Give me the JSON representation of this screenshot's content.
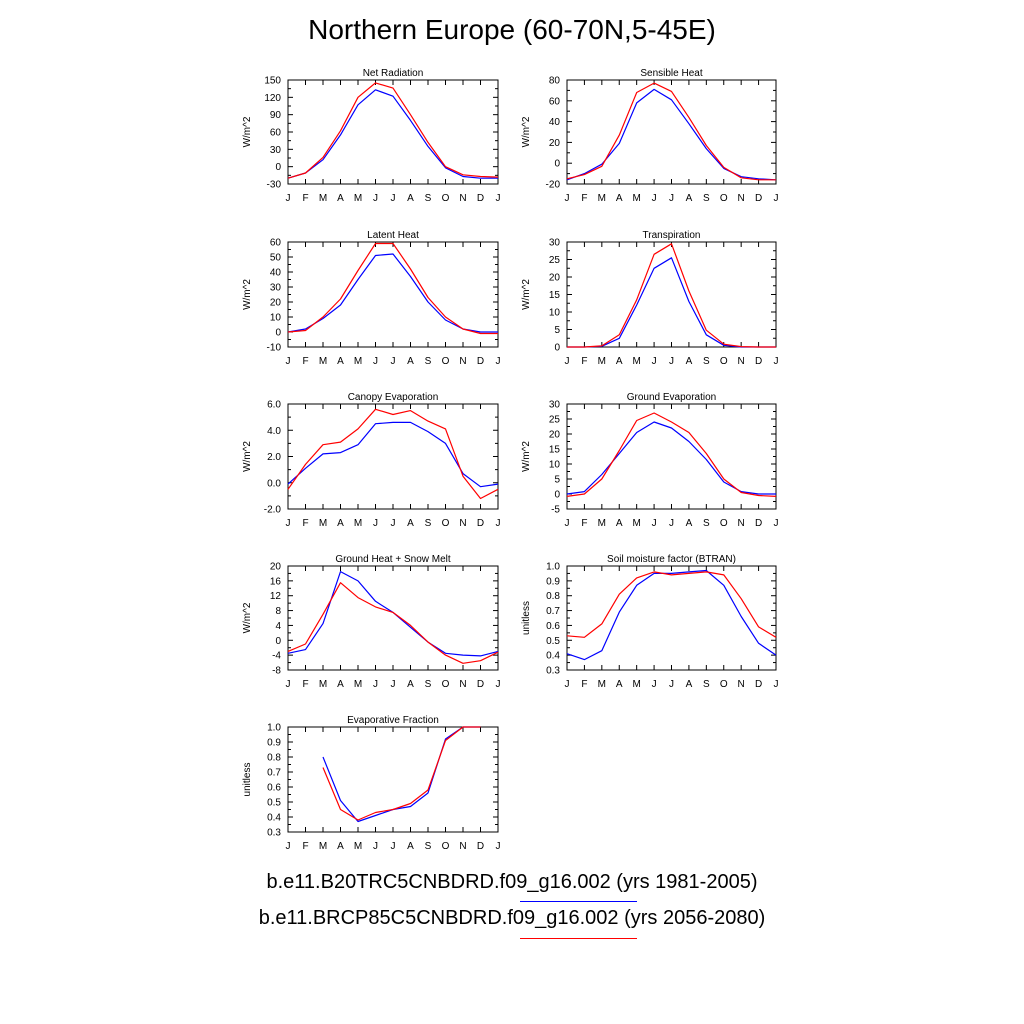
{
  "page": {
    "title": "Northern Europe (60-70N,5-45E)"
  },
  "legend": {
    "items": [
      {
        "label": "b.e11.B20TRC5CNBDRD.f09_g16.002 (yrs 1981-2005)",
        "color": "#0000ff"
      },
      {
        "label": "b.e11.BRCP85C5CNBDRD.f09_g16.002 (yrs 2056-2080)",
        "color": "#ff0000"
      }
    ]
  },
  "chart_data": [
    {
      "type": "line",
      "title": "Net Radiation",
      "ylabel": "W/m^2",
      "x": [
        "J",
        "F",
        "M",
        "A",
        "M",
        "J",
        "J",
        "A",
        "S",
        "O",
        "N",
        "D",
        "J"
      ],
      "ylim": [
        -30,
        150
      ],
      "yticks": [
        -30,
        0,
        30,
        60,
        90,
        120,
        150
      ],
      "ytick_labels": [
        "-30",
        "0",
        "30",
        "60",
        "90",
        "120",
        "150"
      ],
      "series": [
        {
          "color": "#0000ff",
          "values": [
            -20,
            -11,
            12,
            55,
            107,
            133,
            122,
            80,
            35,
            -2,
            -17,
            -20,
            -20
          ]
        },
        {
          "color": "#ff0000",
          "values": [
            -20,
            -11,
            16,
            62,
            120,
            145,
            136,
            90,
            42,
            0,
            -14,
            -17,
            -18
          ]
        }
      ]
    },
    {
      "type": "line",
      "title": "Sensible Heat",
      "ylabel": "W/m^2",
      "x": [
        "J",
        "F",
        "M",
        "A",
        "M",
        "J",
        "J",
        "A",
        "S",
        "O",
        "N",
        "D",
        "J"
      ],
      "ylim": [
        -20,
        80
      ],
      "yticks": [
        -20,
        0,
        20,
        40,
        60,
        80
      ],
      "ytick_labels": [
        "-20",
        "0",
        "20",
        "40",
        "60",
        "80"
      ],
      "series": [
        {
          "color": "#0000ff",
          "values": [
            -16,
            -10,
            -1,
            19,
            58,
            71,
            61,
            38,
            14,
            -5,
            -13,
            -15,
            -16
          ]
        },
        {
          "color": "#ff0000",
          "values": [
            -15,
            -11,
            -3,
            27,
            68,
            77,
            69,
            44,
            17,
            -4,
            -14,
            -16,
            -16
          ]
        }
      ]
    },
    {
      "type": "line",
      "title": "Latent Heat",
      "ylabel": "W/m^2",
      "x": [
        "J",
        "F",
        "M",
        "A",
        "M",
        "J",
        "J",
        "A",
        "S",
        "O",
        "N",
        "D",
        "J"
      ],
      "ylim": [
        -10,
        60
      ],
      "yticks": [
        -10,
        0,
        10,
        20,
        30,
        40,
        50,
        60
      ],
      "ytick_labels": [
        "-10",
        "0",
        "10",
        "20",
        "30",
        "40",
        "50",
        "60"
      ],
      "series": [
        {
          "color": "#0000ff",
          "values": [
            0,
            2,
            9,
            18,
            35,
            51,
            52,
            37,
            20,
            8,
            2,
            0,
            0
          ]
        },
        {
          "color": "#ff0000",
          "values": [
            0,
            1,
            10,
            22,
            41,
            59,
            59,
            42,
            23,
            10,
            2,
            -1,
            -1
          ]
        }
      ]
    },
    {
      "type": "line",
      "title": "Transpiration",
      "ylabel": "W/m^2",
      "x": [
        "J",
        "F",
        "M",
        "A",
        "M",
        "J",
        "J",
        "A",
        "S",
        "O",
        "N",
        "D",
        "J"
      ],
      "ylim": [
        0,
        30
      ],
      "yticks": [
        0,
        5,
        10,
        15,
        20,
        25,
        30
      ],
      "ytick_labels": [
        "0",
        "5",
        "10",
        "15",
        "20",
        "25",
        "30"
      ],
      "series": [
        {
          "color": "#0000ff",
          "values": [
            0,
            0,
            0.2,
            2.5,
            12,
            22.5,
            25.5,
            13,
            3.5,
            0.5,
            0,
            0,
            0
          ]
        },
        {
          "color": "#ff0000",
          "values": [
            0,
            0,
            0.3,
            3.5,
            13.5,
            26.5,
            29.5,
            16,
            4.8,
            0.8,
            0.1,
            0,
            0
          ]
        }
      ]
    },
    {
      "type": "line",
      "title": "Canopy Evaporation",
      "ylabel": "W/m^2",
      "x": [
        "J",
        "F",
        "M",
        "A",
        "M",
        "J",
        "J",
        "A",
        "S",
        "O",
        "N",
        "D",
        "J"
      ],
      "ylim": [
        -2.0,
        6.0
      ],
      "yticks": [
        -2,
        0,
        2,
        4,
        6
      ],
      "ytick_labels": [
        "-2.0",
        "0.0",
        "2.0",
        "4.0",
        "6.0"
      ],
      "series": [
        {
          "color": "#0000ff",
          "values": [
            -0.1,
            1.1,
            2.2,
            2.3,
            2.9,
            4.5,
            4.6,
            4.6,
            3.9,
            3.0,
            0.7,
            -0.3,
            -0.1
          ]
        },
        {
          "color": "#ff0000",
          "values": [
            -0.5,
            1.4,
            2.9,
            3.1,
            4.1,
            5.6,
            5.2,
            5.5,
            4.7,
            4.1,
            0.5,
            -1.2,
            -0.5
          ]
        }
      ]
    },
    {
      "type": "line",
      "title": "Ground Evaporation",
      "ylabel": "W/m^2",
      "x": [
        "J",
        "F",
        "M",
        "A",
        "M",
        "J",
        "J",
        "A",
        "S",
        "O",
        "N",
        "D",
        "J"
      ],
      "ylim": [
        -5,
        30
      ],
      "yticks": [
        -5,
        0,
        5,
        10,
        15,
        20,
        25,
        30
      ],
      "ytick_labels": [
        "-5",
        "0",
        "5",
        "10",
        "15",
        "20",
        "25",
        "30"
      ],
      "series": [
        {
          "color": "#0000ff",
          "values": [
            0,
            0.8,
            6.5,
            13.5,
            20.5,
            24,
            22,
            17.5,
            11.5,
            4,
            0.8,
            0,
            0
          ]
        },
        {
          "color": "#ff0000",
          "values": [
            -0.8,
            0,
            5,
            14.5,
            24.5,
            27,
            24,
            20.5,
            13.5,
            5,
            0.5,
            -0.5,
            -0.8
          ]
        }
      ]
    },
    {
      "type": "line",
      "title": "Ground Heat + Snow Melt",
      "ylabel": "W/m^2",
      "x": [
        "J",
        "F",
        "M",
        "A",
        "M",
        "J",
        "J",
        "A",
        "S",
        "O",
        "N",
        "D",
        "J"
      ],
      "ylim": [
        -8,
        20
      ],
      "yticks": [
        -8,
        -4,
        0,
        4,
        8,
        12,
        16,
        20
      ],
      "ytick_labels": [
        "-8",
        "-4",
        "0",
        "4",
        "8",
        "12",
        "16",
        "20"
      ],
      "series": [
        {
          "color": "#0000ff",
          "values": [
            -3.5,
            -2.5,
            4.5,
            18.5,
            16,
            10.5,
            7.5,
            3.5,
            -0.5,
            -3.5,
            -4,
            -4.2,
            -3
          ]
        },
        {
          "color": "#ff0000",
          "values": [
            -3,
            -1,
            7,
            15.5,
            11.5,
            9,
            7.5,
            4,
            -0.5,
            -4,
            -6.2,
            -5.5,
            -3.2
          ]
        }
      ]
    },
    {
      "type": "line",
      "title": "Soil moisture factor (BTRAN)",
      "ylabel": "unitless",
      "x": [
        "J",
        "F",
        "M",
        "A",
        "M",
        "J",
        "J",
        "A",
        "S",
        "O",
        "N",
        "D",
        "J"
      ],
      "ylim": [
        0.3,
        1.0
      ],
      "yticks": [
        0.3,
        0.4,
        0.5,
        0.6,
        0.7,
        0.8,
        0.9,
        1.0
      ],
      "ytick_labels": [
        "0.3",
        "0.4",
        "0.5",
        "0.6",
        "0.7",
        "0.8",
        "0.9",
        "1.0"
      ],
      "series": [
        {
          "color": "#0000ff",
          "values": [
            0.41,
            0.37,
            0.43,
            0.69,
            0.87,
            0.95,
            0.95,
            0.96,
            0.97,
            0.87,
            0.66,
            0.48,
            0.4
          ]
        },
        {
          "color": "#ff0000",
          "values": [
            0.53,
            0.52,
            0.61,
            0.81,
            0.92,
            0.96,
            0.94,
            0.95,
            0.96,
            0.94,
            0.78,
            0.59,
            0.52
          ]
        }
      ]
    },
    {
      "type": "line",
      "title": "Evaporative Fraction",
      "ylabel": "unitless",
      "x": [
        "J",
        "F",
        "M",
        "A",
        "M",
        "J",
        "J",
        "A",
        "S",
        "O",
        "N",
        "D",
        "J"
      ],
      "ylim": [
        0.3,
        1.0
      ],
      "yticks": [
        0.3,
        0.4,
        0.5,
        0.6,
        0.7,
        0.8,
        0.9,
        1.0
      ],
      "ytick_labels": [
        "0.3",
        "0.4",
        "0.5",
        "0.6",
        "0.7",
        "0.8",
        "0.9",
        "1.0"
      ],
      "series": [
        {
          "color": "#0000ff",
          "values": [
            null,
            null,
            0.8,
            0.51,
            0.37,
            0.41,
            0.45,
            0.47,
            0.56,
            0.92,
            1.0,
            1.0,
            null
          ]
        },
        {
          "color": "#ff0000",
          "values": [
            null,
            null,
            0.73,
            0.45,
            0.38,
            0.43,
            0.45,
            0.49,
            0.58,
            0.91,
            1.0,
            1.0,
            null
          ]
        }
      ]
    }
  ]
}
